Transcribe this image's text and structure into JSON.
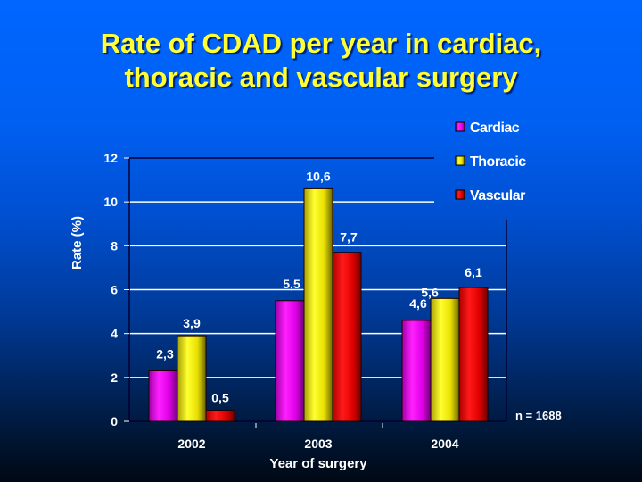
{
  "title": {
    "line1": "Rate of CDAD per year in cardiac,",
    "line2": "thoracic and vascular surgery"
  },
  "note": "n = 1688",
  "colors": {
    "Cardiac": "#ff00ff",
    "Thoracic": "#ffff00",
    "Vascular": "#ff0000",
    "gridline": "#ffffff",
    "title": "#ffff33"
  },
  "chart_data": {
    "type": "bar",
    "title": "Rate of CDAD per year in cardiac, thoracic and vascular surgery",
    "xlabel": "Year of surgery",
    "ylabel": "Rate (%)",
    "categories": [
      "2002",
      "2003",
      "2004"
    ],
    "series": [
      {
        "name": "Cardiac",
        "values": [
          2.3,
          5.5,
          4.6
        ],
        "labels": [
          "2,3",
          "5,5",
          "4,6"
        ]
      },
      {
        "name": "Thoracic",
        "values": [
          3.9,
          10.6,
          5.6
        ],
        "labels": [
          "3,9",
          "10,6",
          "5,6"
        ]
      },
      {
        "name": "Vascular",
        "values": [
          0.5,
          7.7,
          6.1
        ],
        "labels": [
          "0,5",
          "7,7",
          "6,1"
        ]
      }
    ],
    "ylim": [
      0,
      12
    ],
    "yticks": [
      0,
      2,
      4,
      6,
      8,
      10,
      12
    ],
    "grid": true,
    "legend": "top-right"
  }
}
